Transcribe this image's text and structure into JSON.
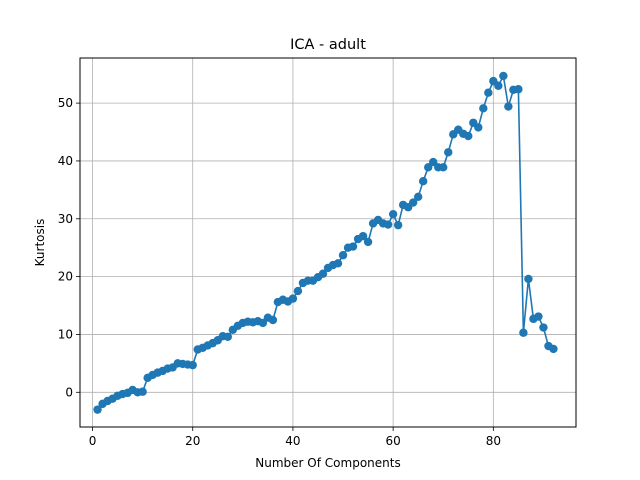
{
  "chart_data": {
    "type": "line",
    "title": "ICA - adult",
    "xlabel": "Number Of Components",
    "ylabel": "Kurtosis",
    "xlim": [
      -2.5,
      96.5
    ],
    "ylim": [
      -6.0,
      57.8
    ],
    "xticks": [
      0,
      20,
      40,
      60,
      80
    ],
    "yticks": [
      0,
      10,
      20,
      30,
      40,
      50
    ],
    "grid": true,
    "series": [
      {
        "color": "#1f77b4",
        "marker": "circle",
        "x": [
          1,
          2,
          3,
          4,
          5,
          6,
          7,
          8,
          9,
          10,
          11,
          12,
          13,
          14,
          15,
          16,
          17,
          18,
          19,
          20,
          21,
          22,
          23,
          24,
          25,
          26,
          27,
          28,
          29,
          30,
          31,
          32,
          33,
          34,
          35,
          36,
          37,
          38,
          39,
          40,
          41,
          42,
          43,
          44,
          45,
          46,
          47,
          48,
          49,
          50,
          51,
          52,
          53,
          54,
          55,
          56,
          57,
          58,
          59,
          60,
          61,
          62,
          63,
          64,
          65,
          66,
          67,
          68,
          69,
          70,
          71,
          72,
          73,
          74,
          75,
          76,
          77,
          78,
          79,
          80,
          81,
          82,
          83,
          84,
          85,
          86,
          87,
          88,
          89,
          90,
          91,
          92
        ],
        "y": [
          -3.0,
          -2.0,
          -1.5,
          -1.1,
          -0.6,
          -0.3,
          -0.1,
          0.4,
          0.0,
          0.1,
          2.5,
          3.0,
          3.4,
          3.7,
          4.1,
          4.3,
          5.0,
          4.9,
          4.8,
          4.7,
          7.4,
          7.7,
          8.1,
          8.5,
          9.0,
          9.7,
          9.6,
          10.8,
          11.5,
          12.0,
          12.2,
          12.1,
          12.3,
          12.0,
          12.9,
          12.5,
          15.6,
          16.0,
          15.7,
          16.2,
          17.5,
          18.9,
          19.3,
          19.3,
          19.9,
          20.5,
          21.5,
          22.0,
          22.3,
          23.7,
          25.0,
          25.2,
          26.5,
          27.0,
          26.0,
          29.2,
          29.8,
          29.2,
          29.0,
          30.8,
          28.9,
          32.4,
          32.0,
          32.8,
          33.8,
          36.5,
          38.9,
          39.8,
          38.9,
          38.9,
          41.5,
          44.6,
          45.4,
          44.7,
          44.3,
          46.6,
          45.8,
          49.1,
          51.8,
          53.8,
          53.0,
          54.7,
          49.4,
          52.3,
          52.4,
          10.3,
          19.6,
          12.7,
          13.1,
          11.2,
          8.0,
          7.5
        ]
      }
    ]
  }
}
